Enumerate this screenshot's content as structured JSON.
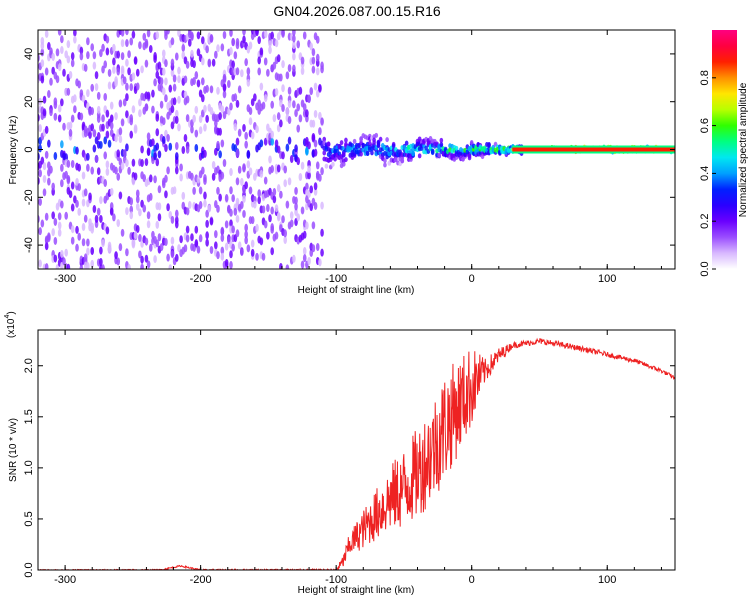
{
  "title": "GN04.2026.087.00.15.R16",
  "colors": {
    "snr_line": "#ee2222",
    "background": "#ffffff",
    "axis": "#000000",
    "colorbar": [
      "#ffffff",
      "#d8b8ff",
      "#9a4dff",
      "#6a00ff",
      "#2a00ff",
      "#0020ff",
      "#00a0ff",
      "#00e8f0",
      "#00ff80",
      "#30ff00",
      "#b8ff00",
      "#ffe600",
      "#ff9000",
      "#ff2000",
      "#ff0040",
      "#ff0080"
    ]
  },
  "chart_data": [
    {
      "type": "heatmap",
      "name": "spectrogram",
      "xlabel": "Height of straight line (km)",
      "ylabel": "Frequency (Hz)",
      "xlim": [
        -320,
        150
      ],
      "ylim": [
        -50,
        50
      ],
      "xticks": [
        -300,
        -200,
        -100,
        0,
        100
      ],
      "xtick_labels": [
        "-300",
        "-200",
        "-100",
        "0",
        "100"
      ],
      "yticks": [
        -40,
        -20,
        0,
        20,
        40
      ],
      "ytick_labels": [
        "-40",
        "-20",
        "0",
        "20",
        "40"
      ],
      "colorbar": {
        "label": "Normalized spectral amplitude",
        "range": [
          0,
          1
        ],
        "ticks": [
          0.0,
          0.2,
          0.4,
          0.6,
          0.8
        ],
        "tick_labels": [
          "0.0",
          "0.2",
          "0.4",
          "0.6",
          "0.8"
        ]
      },
      "description_regions": [
        {
          "x_range": [
            -320,
            -110
          ],
          "freq_spread": 50,
          "amplitude": 0.15
        },
        {
          "x_range": [
            -110,
            40
          ],
          "freq_spread": 6,
          "amplitude": 0.5
        },
        {
          "x_range": [
            40,
            150
          ],
          "freq_spread": 1,
          "amplitude": 0.95
        }
      ]
    },
    {
      "type": "line",
      "name": "snr",
      "xlabel": "Height of straight line (km)",
      "ylabel": "SNR (10 * v/v)",
      "scale_label": "(x10",
      "scale_exponent": "4",
      "scale_suffix": ")",
      "xlim": [
        -320,
        150
      ],
      "ylim": [
        0,
        2.35
      ],
      "xticks": [
        -300,
        -200,
        -100,
        0,
        100
      ],
      "xtick_labels": [
        "-300",
        "-200",
        "-100",
        "0",
        "100"
      ],
      "yticks": [
        0,
        0.5,
        1.0,
        1.5,
        2.0
      ],
      "ytick_labels": [
        "0.0",
        "0.5",
        "1.0",
        "1.5",
        "2.0"
      ],
      "envelope": {
        "x": [
          -320,
          -230,
          -215,
          -200,
          -100,
          -95,
          -90,
          -80,
          -70,
          -60,
          -50,
          -40,
          -30,
          -20,
          -10,
          0,
          10,
          20,
          30,
          40,
          50,
          60,
          80,
          100,
          110,
          120,
          130,
          140,
          150
        ],
        "y": [
          0.0,
          0.0,
          0.04,
          0.0,
          0.0,
          0.08,
          0.25,
          0.4,
          0.55,
          0.7,
          0.8,
          0.95,
          1.15,
          1.4,
          1.6,
          1.8,
          1.95,
          2.1,
          2.2,
          2.22,
          2.24,
          2.22,
          2.17,
          2.11,
          2.08,
          2.05,
          2.0,
          1.95,
          1.88
        ]
      },
      "noise_amplitude": {
        "x": [
          -320,
          -100,
          -90,
          -50,
          -20,
          0,
          10,
          30,
          150
        ],
        "y": [
          0.005,
          0.01,
          0.12,
          0.4,
          0.55,
          0.4,
          0.12,
          0.03,
          0.02
        ]
      }
    }
  ]
}
